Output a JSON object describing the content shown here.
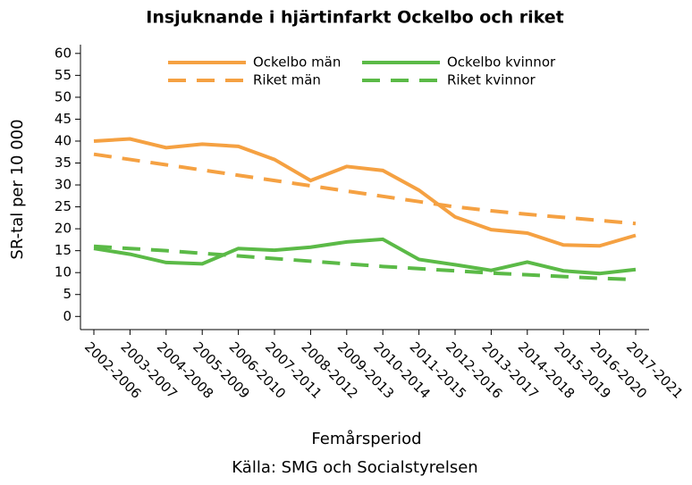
{
  "chart_data": {
    "type": "line",
    "title": "Insjuknande i hjärtinfarkt Ockelbo och riket",
    "xlabel": "Femårsperiod",
    "ylabel": "SR-tal per 10 000",
    "source": "Källa: SMG och Socialstyrelsen",
    "categories": [
      "2002-2006",
      "2003-2007",
      "2004-2008",
      "2005-2009",
      "2006-2010",
      "2007-2011",
      "2008-2012",
      "2009-2013",
      "2010-2014",
      "2011-2015",
      "2012-2016",
      "2013-2017",
      "2014-2018",
      "2015-2019",
      "2016-2020",
      "2017-2021"
    ],
    "series": [
      {
        "name": "Ockelbo män",
        "color": "#f5a142",
        "dashed": false,
        "values": [
          40,
          40.5,
          38.5,
          39.3,
          38.8,
          35.8,
          31,
          34.2,
          33.3,
          28.8,
          22.7,
          19.8,
          19,
          16.3,
          16.1,
          18.5
        ]
      },
      {
        "name": "Ockelbo kvinnor",
        "color": "#5bba47",
        "dashed": false,
        "values": [
          15.5,
          14.2,
          12.3,
          12,
          15.5,
          15.1,
          15.8,
          17,
          17.6,
          13,
          11.8,
          10.5,
          12.4,
          10.4,
          9.8,
          10.7
        ]
      },
      {
        "name": "Riket män",
        "color": "#f5a142",
        "dashed": true,
        "values": [
          37,
          35.8,
          34.6,
          33.4,
          32.2,
          31,
          29.8,
          28.6,
          27.4,
          26.2,
          25,
          24.1,
          23.3,
          22.6,
          21.9,
          21.2
        ]
      },
      {
        "name": "Riket kvinnor",
        "color": "#5bba47",
        "dashed": true,
        "values": [
          16,
          15.5,
          15,
          14.4,
          13.8,
          13.2,
          12.6,
          12,
          11.4,
          10.9,
          10.4,
          9.9,
          9.5,
          9.1,
          8.7,
          8.4
        ]
      }
    ],
    "ylim": [
      -3,
      62
    ],
    "yticks": [
      0,
      5,
      10,
      15,
      20,
      25,
      30,
      35,
      40,
      45,
      50,
      55,
      60
    ],
    "grid": false,
    "legend": "top"
  }
}
